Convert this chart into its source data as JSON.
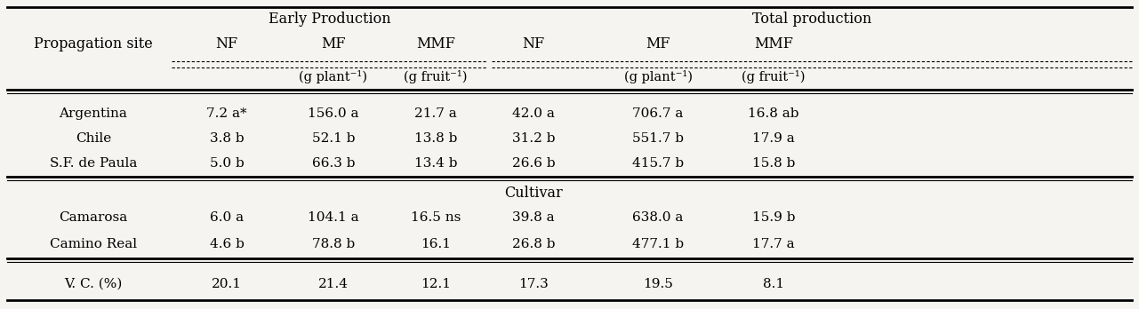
{
  "figsize": [
    12.81,
    3.48
  ],
  "dpi": 100,
  "bg_color": "#f5f4f0",
  "header_group1": "Early Production",
  "header_group2": "Total production",
  "col_headers": [
    "NF",
    "MF",
    "MMF",
    "NF",
    "MF",
    "MMF"
  ],
  "subheaders": [
    "",
    "(g plant⁻¹)",
    "(g fruit⁻¹)",
    "",
    "(g plant⁻¹)",
    "(g fruit⁻¹)"
  ],
  "row_label_header": "Propagation site",
  "section1_rows": [
    [
      "Argentina",
      "7.2 a*",
      "156.0 a",
      "21.7 a",
      "42.0 a",
      "706.7 a",
      "16.8 ab"
    ],
    [
      "Chile",
      "3.8 b",
      "52.1 b",
      "13.8 b",
      "31.2 b",
      "551.7 b",
      "17.9 a"
    ],
    [
      "S.F. de Paula",
      "5.0 b",
      "66.3 b",
      "13.4 b",
      "26.6 b",
      "415.7 b",
      "15.8 b"
    ]
  ],
  "section2_label": "Cultivar",
  "section2_rows": [
    [
      "Camarosa",
      "6.0 a",
      "104.1 a",
      "16.5 ns",
      "39.8 a",
      "638.0 a",
      "15.9 b"
    ],
    [
      "Camino Real",
      "4.6 b",
      "78.8 b",
      "16.1",
      "26.8 b",
      "477.1 b",
      "17.7 a"
    ]
  ],
  "footer_row": [
    "V. C. (%)",
    "20.1",
    "21.4",
    "12.1",
    "17.3",
    "19.5",
    "8.1"
  ],
  "font_size": 11,
  "header_font_size": 11.5
}
